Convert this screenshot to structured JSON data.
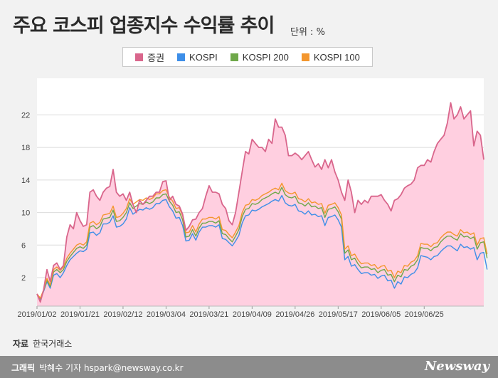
{
  "header": {
    "title": "주요 코스피 업종지수 수익률 추이",
    "unit": "단위 : %"
  },
  "colors": {
    "area_fill": "#ffcfe0",
    "securities": "#d9668c",
    "kospi": "#3d8ee8",
    "kospi200": "#6fa84a",
    "kospi100": "#f3962e",
    "grid": "#dcdcdc",
    "plot_bg": "#ffffff"
  },
  "source": {
    "label": "자료",
    "text": "한국거래소"
  },
  "footer": {
    "credit_label": "그래픽",
    "credit_text": "박혜수 기자 hspark@newsway.co.kr",
    "logo": "Newsway"
  },
  "chart_data": {
    "type": "line",
    "unit": "%",
    "ylim": [
      -1.5,
      26.5
    ],
    "yticks": [
      2,
      6,
      10,
      14,
      18,
      22
    ],
    "grid": "horizontal",
    "legend_position": "top",
    "x_tick_labels": [
      "2019/01/02",
      "2019/01/21",
      "2019/02/12",
      "2019/03/04",
      "2019/03/21",
      "2019/04/09",
      "2019/04/26",
      "2019/05/17",
      "2019/06/05",
      "2019/06/25"
    ],
    "x_tick_index": [
      0,
      13,
      26,
      39,
      52,
      65,
      78,
      91,
      104,
      117
    ],
    "series": [
      {
        "name": "증권",
        "color": "#d9668c",
        "area": true,
        "values": [
          0,
          -1,
          0.5,
          3,
          1.5,
          3.5,
          3.8,
          3,
          3.5,
          7,
          8.5,
          8,
          10,
          9,
          8.3,
          8.5,
          12.5,
          12.8,
          12,
          11.5,
          12.5,
          13,
          13.2,
          15.3,
          12.5,
          12,
          12.3,
          11.5,
          12.5,
          11,
          10,
          11.5,
          11,
          11.5,
          12,
          12,
          12.5,
          12.5,
          13.8,
          13.9,
          11.5,
          12,
          11,
          10.8,
          9.8,
          7.8,
          8.3,
          9.1,
          9.2,
          10,
          10.5,
          12,
          13.3,
          12.5,
          12.5,
          12.3,
          11,
          10.5,
          9,
          8.5,
          10,
          12.5,
          15,
          17.5,
          17.2,
          19,
          18.5,
          18,
          18,
          17.5,
          19,
          18.5,
          21.5,
          20.5,
          20.5,
          19.5,
          17,
          17,
          17.3,
          17,
          16.5,
          17,
          17.5,
          16.5,
          15.6,
          16,
          15.3,
          16.5,
          15.5,
          16.5,
          15,
          14,
          12.5,
          11.5,
          14,
          12.5,
          10,
          11.5,
          11,
          11.5,
          11.2,
          12,
          12,
          12,
          12.2,
          11.5,
          11,
          10.2,
          11.5,
          11.7,
          12.2,
          13,
          13.3,
          13.5,
          14,
          15.5,
          15.8,
          15.8,
          16.5,
          16.2,
          17.5,
          18.5,
          19,
          19.5,
          21,
          23.5,
          21.5,
          22,
          23,
          21.5,
          22,
          22.5,
          18.2,
          20,
          19.5,
          16.5
        ]
      },
      {
        "name": "KOSPI",
        "color": "#3d8ee8",
        "values": [
          0,
          -0.7,
          0.3,
          1.5,
          0.7,
          2.3,
          2.5,
          2,
          2.6,
          3.5,
          4.2,
          4.6,
          5,
          5.3,
          5.2,
          5.5,
          7.5,
          7.6,
          7.2,
          7.5,
          8.6,
          8.6,
          8.8,
          9.6,
          8.2,
          8.3,
          8.6,
          9.2,
          10.6,
          9.8,
          10.1,
          10.4,
          10.3,
          10.6,
          10.4,
          10.6,
          11.1,
          11.1,
          11.5,
          11.6,
          10.7,
          10.2,
          9.3,
          9.4,
          8.4,
          6.5,
          6.6,
          7.4,
          6.6,
          7.6,
          8.2,
          8.2,
          8.4,
          8.4,
          8.2,
          8.5,
          6.8,
          6.7,
          6.3,
          5.9,
          6.5,
          7.2,
          8.7,
          9.6,
          9.7,
          10.3,
          10.2,
          10.4,
          10.7,
          10.9,
          11.1,
          11.4,
          11.6,
          11.4,
          12.1,
          11.2,
          10.9,
          10.8,
          11,
          10.2,
          10.1,
          9.8,
          10.2,
          9.7,
          9.8,
          9.5,
          9.6,
          8.4,
          9.4,
          9.5,
          9.7,
          9.1,
          8.2,
          4.2,
          4.6,
          3.4,
          3.6,
          3,
          2.5,
          2.6,
          2.6,
          2.3,
          2.4,
          1.9,
          2.2,
          2.3,
          1.6,
          1.7,
          0.7,
          1.5,
          1.2,
          2.1,
          2,
          2.4,
          2.6,
          3.2,
          4.7,
          4.6,
          4.5,
          4.2,
          4.6,
          4.7,
          5.2,
          5.6,
          5.9,
          5.9,
          5.6,
          5.3,
          6.1,
          5.7,
          5.8,
          5.5,
          5.7,
          4.2,
          5,
          5.1,
          3
        ]
      },
      {
        "name": "KOSPI 200",
        "color": "#6fa84a",
        "values": [
          0,
          -0.6,
          0.4,
          1.7,
          0.9,
          2.7,
          3,
          2.6,
          3,
          4,
          4.6,
          5.1,
          5.6,
          5.8,
          5.6,
          6,
          8.2,
          8.4,
          8,
          8.3,
          9.2,
          9.3,
          9.4,
          10.3,
          8.9,
          9,
          9.4,
          10,
          11.2,
          10.5,
          10.8,
          11.1,
          11,
          11.3,
          11.1,
          11.3,
          11.8,
          11.8,
          12.2,
          12.3,
          11.4,
          10.9,
          10,
          10.1,
          9.1,
          7,
          7.1,
          7.9,
          7.1,
          8.1,
          8.7,
          8.7,
          8.9,
          8.9,
          8.7,
          9,
          7.4,
          7.3,
          6.8,
          6.4,
          7.1,
          7.9,
          9.5,
          10.4,
          10.5,
          11.1,
          11,
          11.2,
          11.6,
          11.8,
          12,
          12.3,
          12.5,
          12.3,
          13.1,
          12.2,
          11.9,
          11.8,
          12,
          11.2,
          11.1,
          10.8,
          11.2,
          10.7,
          10.8,
          10.5,
          10.6,
          9.4,
          10.4,
          10.5,
          10.7,
          10.1,
          9.2,
          5,
          5.4,
          4.2,
          4.4,
          3.7,
          3.2,
          3.3,
          3.3,
          3,
          3.1,
          2.6,
          2.9,
          3,
          2.3,
          2.4,
          1.5,
          2.3,
          2.1,
          3,
          2.9,
          3.4,
          3.6,
          4.2,
          5.7,
          5.6,
          5.6,
          5.3,
          5.7,
          5.8,
          6.4,
          6.8,
          7.1,
          7.1,
          6.8,
          6.6,
          7.4,
          7,
          7.1,
          6.8,
          7,
          5.5,
          6.3,
          6.4,
          4.4
        ]
      },
      {
        "name": "KOSPI 100",
        "color": "#f3962e",
        "values": [
          0,
          -0.5,
          0.5,
          1.9,
          1.1,
          3,
          3.3,
          2.9,
          3.3,
          4.4,
          5,
          5.5,
          6,
          6.2,
          6,
          6.4,
          8.7,
          8.9,
          8.5,
          8.8,
          9.7,
          9.8,
          9.9,
          10.8,
          9.4,
          9.5,
          9.9,
          10.5,
          11.7,
          11,
          11.3,
          11.6,
          11.5,
          11.8,
          11.6,
          11.8,
          12.3,
          12.3,
          12.7,
          12.8,
          11.9,
          11.4,
          10.5,
          10.6,
          9.6,
          7.5,
          7.6,
          8.4,
          7.6,
          8.6,
          9.2,
          9.2,
          9.4,
          9.4,
          9.2,
          9.5,
          7.9,
          7.8,
          7.3,
          6.9,
          7.6,
          8.4,
          10,
          10.9,
          11,
          11.6,
          11.5,
          11.7,
          12.1,
          12.3,
          12.5,
          12.8,
          13,
          12.8,
          13.6,
          12.7,
          12.4,
          12.3,
          12.5,
          11.7,
          11.6,
          11.3,
          11.7,
          11.2,
          11.3,
          11,
          11.1,
          9.9,
          10.9,
          11,
          11.2,
          10.6,
          9.7,
          5.5,
          5.9,
          4.7,
          4.9,
          4.2,
          3.7,
          3.8,
          3.8,
          3.5,
          3.6,
          3.1,
          3.4,
          3.5,
          2.8,
          2.9,
          2,
          2.8,
          2.6,
          3.5,
          3.4,
          3.9,
          4.1,
          4.7,
          6.2,
          6.1,
          6.1,
          5.8,
          6.2,
          6.3,
          6.9,
          7.3,
          7.6,
          7.6,
          7.3,
          7.1,
          7.9,
          7.5,
          7.6,
          7.3,
          7.5,
          6,
          6.8,
          6.9,
          4.9
        ]
      }
    ]
  }
}
